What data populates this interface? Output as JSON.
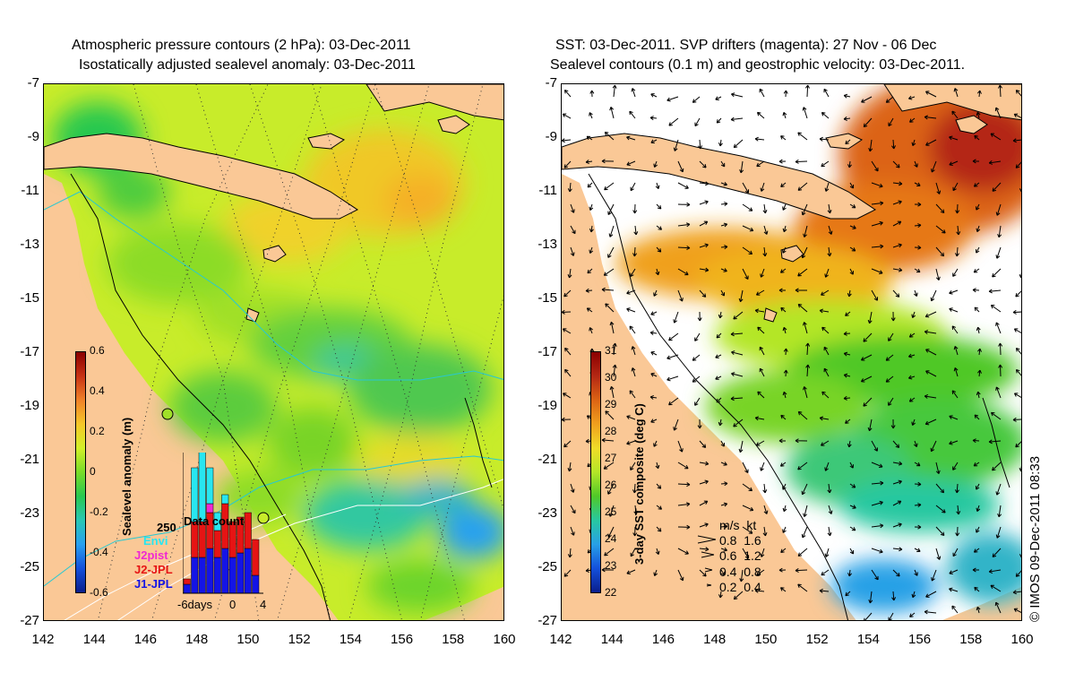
{
  "left": {
    "title_line1": "Atmospheric pressure contours (2 hPa): 03-Dec-2011",
    "title_line2": "Isostatically adjusted sealevel anomaly: 03-Dec-2011",
    "colorbar_title": "Sealevel anomaly (m)",
    "colorbar_ticks": [
      "0.6",
      "0.4",
      "0.2",
      "0",
      "-0.2",
      "-0.4",
      "-0.6"
    ],
    "colorbar_colors": [
      "#8b0000",
      "#c83214",
      "#f08228",
      "#f5c828",
      "#d2f028",
      "#78dc28",
      "#28c850",
      "#28c8b4",
      "#28a0f0",
      "#1450dc",
      "#0a1e8c"
    ],
    "inset": {
      "title": "Data count",
      "ytick": "250",
      "legend": [
        {
          "name": "Envi",
          "color": "#28e6f0"
        },
        {
          "name": "J2pist",
          "color": "#f028d2"
        },
        {
          "name": "J2-JPL",
          "color": "#e61414"
        },
        {
          "name": "J1-JPL",
          "color": "#1414e6"
        }
      ],
      "xticks": [
        "-6days",
        "0",
        "4"
      ]
    }
  },
  "right": {
    "title_line1": "SST: 03-Dec-2011. SVP drifters (magenta): 27 Nov - 06 Dec",
    "title_line2": "Sealevel contours (0.1 m) and geostrophic velocity: 03-Dec-2011.",
    "colorbar_title": "3-day SST composite (deg C)",
    "colorbar_ticks": [
      "31",
      "30",
      "29",
      "28",
      "27",
      "26",
      "25",
      "24",
      "23",
      "22"
    ],
    "colorbar_colors": [
      "#8b0000",
      "#b42814",
      "#dc6414",
      "#f0a01e",
      "#f0dc28",
      "#b4e628",
      "#50c828",
      "#28c8a0",
      "#28a0e6",
      "#1450dc",
      "#0a1e8c"
    ],
    "velocity_legend": {
      "header": "m/s  kt",
      "rows": [
        "0.8  1.6",
        "0.6  1.2",
        "0.4  0.8",
        "0.2  0.4"
      ]
    },
    "credit": "© IMOS 09-Dec-2011 08:33"
  },
  "axes": {
    "yticks": [
      "-7",
      "-9",
      "-11",
      "-13",
      "-15",
      "-17",
      "-19",
      "-21",
      "-23",
      "-25",
      "-27"
    ],
    "xticks": [
      "142",
      "144",
      "146",
      "148",
      "150",
      "152",
      "154",
      "156",
      "158",
      "160"
    ]
  },
  "colors": {
    "land": "#fac896",
    "no_data": "#ffffff"
  }
}
